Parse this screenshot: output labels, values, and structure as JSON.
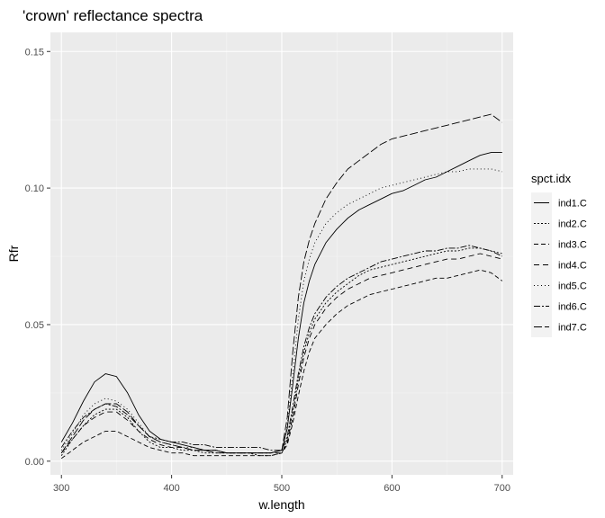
{
  "chart_data": {
    "type": "line",
    "title": "'crown' reflectance spectra",
    "xlabel": "w.length",
    "ylabel": "Rfr",
    "xlim": [
      290,
      710
    ],
    "ylim": [
      -0.005,
      0.157
    ],
    "x_ticks": [
      300,
      400,
      500,
      600,
      700
    ],
    "x_tick_labels": [
      "300",
      "400",
      "500",
      "600",
      "700"
    ],
    "y_ticks": [
      0.0,
      0.05,
      0.1,
      0.15
    ],
    "y_tick_labels": [
      "0.00",
      "0.05",
      "0.10",
      "0.15"
    ],
    "grid": true,
    "legend": {
      "title": "spct.idx",
      "position": "right"
    },
    "colors": {
      "panel": "#ebebeb",
      "grid_major": "#ffffff",
      "grid_minor": "#f4f4f4",
      "line": "#000000",
      "legend_key": "#f2f2f2"
    },
    "x": [
      300,
      310,
      320,
      330,
      340,
      350,
      360,
      370,
      380,
      390,
      400,
      410,
      420,
      430,
      440,
      450,
      460,
      470,
      480,
      490,
      500,
      505,
      510,
      515,
      520,
      525,
      530,
      540,
      550,
      560,
      570,
      580,
      590,
      600,
      610,
      620,
      630,
      640,
      650,
      660,
      670,
      680,
      690,
      700
    ],
    "series": [
      {
        "name": "ind1.C",
        "dash": "solid",
        "values": [
          0.007,
          0.014,
          0.022,
          0.029,
          0.032,
          0.031,
          0.025,
          0.017,
          0.011,
          0.008,
          0.007,
          0.006,
          0.005,
          0.004,
          0.004,
          0.003,
          0.003,
          0.003,
          0.003,
          0.003,
          0.004,
          0.012,
          0.028,
          0.045,
          0.058,
          0.066,
          0.072,
          0.08,
          0.085,
          0.089,
          0.092,
          0.094,
          0.096,
          0.098,
          0.099,
          0.101,
          0.103,
          0.104,
          0.106,
          0.108,
          0.11,
          0.112,
          0.113,
          0.113
        ]
      },
      {
        "name": "ind2.C",
        "dash": "2,2",
        "values": [
          0.002,
          0.008,
          0.013,
          0.017,
          0.019,
          0.019,
          0.016,
          0.011,
          0.007,
          0.005,
          0.005,
          0.004,
          0.004,
          0.003,
          0.003,
          0.003,
          0.003,
          0.003,
          0.002,
          0.002,
          0.003,
          0.008,
          0.018,
          0.03,
          0.04,
          0.047,
          0.052,
          0.058,
          0.062,
          0.065,
          0.068,
          0.07,
          0.071,
          0.072,
          0.073,
          0.074,
          0.075,
          0.076,
          0.077,
          0.077,
          0.078,
          0.078,
          0.077,
          0.076
        ]
      },
      {
        "name": "ind3.C",
        "dash": "5,3",
        "values": [
          0.001,
          0.004,
          0.007,
          0.009,
          0.011,
          0.011,
          0.009,
          0.007,
          0.005,
          0.004,
          0.003,
          0.003,
          0.002,
          0.002,
          0.002,
          0.002,
          0.002,
          0.002,
          0.002,
          0.002,
          0.003,
          0.006,
          0.014,
          0.024,
          0.033,
          0.04,
          0.045,
          0.05,
          0.054,
          0.057,
          0.059,
          0.061,
          0.062,
          0.063,
          0.064,
          0.065,
          0.066,
          0.067,
          0.067,
          0.068,
          0.069,
          0.07,
          0.069,
          0.066
        ]
      },
      {
        "name": "ind4.C",
        "dash": "6,4",
        "values": [
          0.003,
          0.008,
          0.013,
          0.016,
          0.018,
          0.018,
          0.015,
          0.011,
          0.008,
          0.006,
          0.005,
          0.005,
          0.004,
          0.004,
          0.004,
          0.003,
          0.003,
          0.003,
          0.003,
          0.003,
          0.003,
          0.007,
          0.016,
          0.028,
          0.038,
          0.045,
          0.05,
          0.056,
          0.06,
          0.063,
          0.065,
          0.067,
          0.068,
          0.069,
          0.07,
          0.071,
          0.072,
          0.073,
          0.074,
          0.074,
          0.075,
          0.076,
          0.075,
          0.074
        ]
      },
      {
        "name": "ind5.C",
        "dash": "1,3",
        "values": [
          0.004,
          0.01,
          0.017,
          0.021,
          0.023,
          0.022,
          0.019,
          0.014,
          0.009,
          0.007,
          0.006,
          0.005,
          0.005,
          0.004,
          0.004,
          0.003,
          0.003,
          0.003,
          0.003,
          0.003,
          0.004,
          0.013,
          0.032,
          0.052,
          0.066,
          0.074,
          0.08,
          0.087,
          0.091,
          0.094,
          0.096,
          0.098,
          0.1,
          0.101,
          0.102,
          0.103,
          0.104,
          0.105,
          0.106,
          0.106,
          0.107,
          0.107,
          0.107,
          0.106
        ]
      },
      {
        "name": "ind6.C",
        "dash": "7,2,2,2",
        "values": [
          0.005,
          0.011,
          0.016,
          0.019,
          0.021,
          0.02,
          0.017,
          0.013,
          0.009,
          0.008,
          0.007,
          0.007,
          0.006,
          0.006,
          0.005,
          0.005,
          0.005,
          0.005,
          0.005,
          0.004,
          0.004,
          0.009,
          0.02,
          0.032,
          0.042,
          0.049,
          0.054,
          0.06,
          0.064,
          0.067,
          0.069,
          0.071,
          0.073,
          0.074,
          0.075,
          0.076,
          0.077,
          0.077,
          0.078,
          0.078,
          0.079,
          0.078,
          0.077,
          0.075
        ]
      },
      {
        "name": "ind7.C",
        "dash": "9,3",
        "values": [
          0.003,
          0.009,
          0.015,
          0.019,
          0.021,
          0.021,
          0.018,
          0.013,
          0.009,
          0.007,
          0.006,
          0.005,
          0.004,
          0.004,
          0.003,
          0.003,
          0.003,
          0.003,
          0.003,
          0.003,
          0.004,
          0.016,
          0.04,
          0.06,
          0.073,
          0.081,
          0.087,
          0.096,
          0.102,
          0.107,
          0.11,
          0.113,
          0.116,
          0.118,
          0.119,
          0.12,
          0.121,
          0.122,
          0.123,
          0.124,
          0.125,
          0.126,
          0.127,
          0.124
        ]
      }
    ]
  }
}
